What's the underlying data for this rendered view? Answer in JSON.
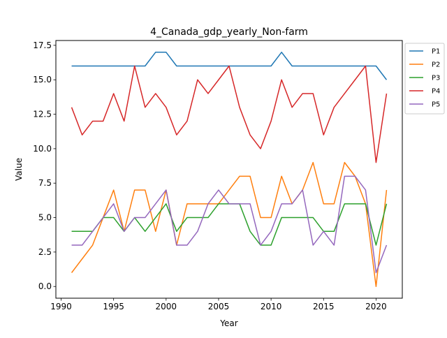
{
  "chart_data": {
    "type": "line",
    "title": "4_Canada_gdp_yearly_Non-farm",
    "xlabel": "Year",
    "ylabel": "Value",
    "xlim": [
      1989.5,
      2022.5
    ],
    "ylim": [
      -0.85,
      17.85
    ],
    "x_ticks": [
      1990,
      1995,
      2000,
      2005,
      2010,
      2015,
      2020
    ],
    "y_ticks": [
      0.0,
      2.5,
      5.0,
      7.5,
      10.0,
      12.5,
      15.0,
      17.5
    ],
    "grid": false,
    "legend": "outside-top-right",
    "x": [
      1991,
      1992,
      1993,
      1994,
      1995,
      1996,
      1997,
      1998,
      1999,
      2000,
      2001,
      2002,
      2003,
      2004,
      2005,
      2006,
      2007,
      2008,
      2009,
      2010,
      2011,
      2012,
      2013,
      2014,
      2015,
      2016,
      2017,
      2018,
      2019,
      2020,
      2021
    ],
    "series": [
      {
        "name": "P1",
        "color": "#1f77b4",
        "values": [
          16,
          16,
          16,
          16,
          16,
          16,
          16,
          16,
          17,
          17,
          16,
          16,
          16,
          16,
          16,
          16,
          16,
          16,
          16,
          16,
          17,
          16,
          16,
          16,
          16,
          16,
          16,
          16,
          16,
          16,
          15
        ]
      },
      {
        "name": "P2",
        "color": "#ff7f0e",
        "values": [
          1,
          2,
          3,
          5,
          7,
          4,
          7,
          7,
          4,
          7,
          3,
          6,
          6,
          6,
          6,
          7,
          8,
          8,
          5,
          5,
          8,
          6,
          7,
          9,
          6,
          6,
          9,
          8,
          6,
          0,
          7
        ]
      },
      {
        "name": "P3",
        "color": "#2ca02c",
        "values": [
          4,
          4,
          4,
          5,
          5,
          4,
          5,
          4,
          5,
          6,
          4,
          5,
          5,
          5,
          6,
          6,
          6,
          4,
          3,
          3,
          5,
          5,
          5,
          5,
          4,
          4,
          6,
          6,
          6,
          3,
          6
        ]
      },
      {
        "name": "P4",
        "color": "#d62728",
        "values": [
          13,
          11,
          12,
          12,
          14,
          12,
          16,
          13,
          14,
          13,
          11,
          12,
          15,
          14,
          15,
          16,
          13,
          11,
          10,
          12,
          15,
          13,
          14,
          14,
          11,
          13,
          14,
          15,
          16,
          9,
          14
        ]
      },
      {
        "name": "P5",
        "color": "#9467bd",
        "values": [
          3,
          3,
          4,
          5,
          6,
          4,
          5,
          5,
          6,
          7,
          3,
          3,
          4,
          6,
          7,
          6,
          6,
          6,
          3,
          4,
          6,
          6,
          7,
          3,
          4,
          3,
          8,
          8,
          7,
          1,
          3
        ]
      }
    ]
  }
}
